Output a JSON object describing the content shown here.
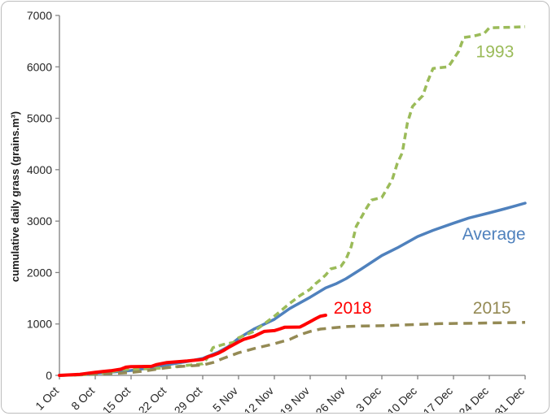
{
  "chart_data": {
    "type": "line",
    "title": "",
    "ylabel": "cumulative daily grass (grains.m³)",
    "xlabel": "",
    "ylim": [
      0,
      7000
    ],
    "ytick_step": 1000,
    "ytick_labels": [
      "0",
      "1000",
      "2000",
      "3000",
      "4000",
      "5000",
      "6000",
      "7000"
    ],
    "xtick_labels": [
      "1 Oct",
      "8 Oct",
      "15 Oct",
      "22 Oct",
      "29 Oct",
      "5 Nov",
      "12 Nov",
      "19 Nov",
      "26 Nov",
      "3 Dec",
      "10 Dec",
      "17 Dec",
      "24 Dec",
      "31 Dec"
    ],
    "xtick_days": [
      0,
      7,
      14,
      21,
      28,
      35,
      42,
      49,
      56,
      63,
      70,
      77,
      84,
      91
    ],
    "x_domain_days": [
      0,
      91
    ],
    "grid": false,
    "legend_position": "inline-labels",
    "axis_color": "#808080",
    "series": [
      {
        "name": "Average",
        "color": "#4F81BD",
        "dash": null,
        "width": 3.5,
        "label": {
          "text": "Average",
          "day": 84.9,
          "value": 2750
        },
        "points": [
          [
            0,
            0
          ],
          [
            4,
            15
          ],
          [
            7,
            40
          ],
          [
            11,
            70
          ],
          [
            14,
            95
          ],
          [
            18,
            150
          ],
          [
            21,
            205
          ],
          [
            25,
            270
          ],
          [
            28,
            330
          ],
          [
            31,
            450
          ],
          [
            33,
            560
          ],
          [
            35,
            720
          ],
          [
            38,
            900
          ],
          [
            42,
            1090
          ],
          [
            45,
            1300
          ],
          [
            49,
            1520
          ],
          [
            52,
            1700
          ],
          [
            54,
            1780
          ],
          [
            56,
            1880
          ],
          [
            59,
            2070
          ],
          [
            63,
            2330
          ],
          [
            66,
            2480
          ],
          [
            70,
            2700
          ],
          [
            73,
            2820
          ],
          [
            77,
            2960
          ],
          [
            80,
            3060
          ],
          [
            84,
            3160
          ],
          [
            87,
            3240
          ],
          [
            91,
            3350
          ]
        ]
      },
      {
        "name": "1993",
        "color": "#9BBB59",
        "dash": "8 5",
        "width": 3.5,
        "label": {
          "text": "1993",
          "day": 85.1,
          "value": 6300
        },
        "points": [
          [
            0,
            0
          ],
          [
            4,
            10
          ],
          [
            7,
            25
          ],
          [
            10,
            60
          ],
          [
            12,
            110
          ],
          [
            14,
            120
          ],
          [
            18,
            130
          ],
          [
            21,
            150
          ],
          [
            24,
            185
          ],
          [
            26,
            205
          ],
          [
            28,
            225
          ],
          [
            29,
            350
          ],
          [
            30,
            540
          ],
          [
            32,
            600
          ],
          [
            34,
            640
          ],
          [
            35,
            730
          ],
          [
            38,
            855
          ],
          [
            40,
            1000
          ],
          [
            42,
            1150
          ],
          [
            45,
            1400
          ],
          [
            47,
            1550
          ],
          [
            49,
            1675
          ],
          [
            50,
            1780
          ],
          [
            51,
            1860
          ],
          [
            52,
            1950
          ],
          [
            53,
            2070
          ],
          [
            55,
            2120
          ],
          [
            56,
            2260
          ],
          [
            57,
            2500
          ],
          [
            58,
            2900
          ],
          [
            60,
            3250
          ],
          [
            61,
            3410
          ],
          [
            63,
            3460
          ],
          [
            65,
            3800
          ],
          [
            66,
            4120
          ],
          [
            67,
            4330
          ],
          [
            68,
            4910
          ],
          [
            69,
            5230
          ],
          [
            70,
            5340
          ],
          [
            71,
            5440
          ],
          [
            72,
            5730
          ],
          [
            73,
            5970
          ],
          [
            75,
            5990
          ],
          [
            76,
            6000
          ],
          [
            78,
            6300
          ],
          [
            79,
            6570
          ],
          [
            81,
            6600
          ],
          [
            83,
            6650
          ],
          [
            84,
            6760
          ],
          [
            88,
            6770
          ],
          [
            91,
            6780
          ]
        ]
      },
      {
        "name": "2015",
        "color": "#948A54",
        "dash": "11 7",
        "width": 3.5,
        "label": {
          "text": "2015",
          "day": 84.5,
          "value": 1310
        },
        "points": [
          [
            0,
            0
          ],
          [
            4,
            10
          ],
          [
            7,
            25
          ],
          [
            11,
            40
          ],
          [
            14,
            55
          ],
          [
            17,
            90
          ],
          [
            21,
            150
          ],
          [
            24,
            175
          ],
          [
            28,
            200
          ],
          [
            30,
            250
          ],
          [
            32,
            330
          ],
          [
            35,
            440
          ],
          [
            38,
            520
          ],
          [
            42,
            615
          ],
          [
            45,
            700
          ],
          [
            47,
            790
          ],
          [
            49,
            855
          ],
          [
            51,
            900
          ],
          [
            53,
            920
          ],
          [
            56,
            950
          ],
          [
            59,
            960
          ],
          [
            63,
            965
          ],
          [
            66,
            975
          ],
          [
            70,
            990
          ],
          [
            74,
            1005
          ],
          [
            77,
            1010
          ],
          [
            81,
            1015
          ],
          [
            84,
            1020
          ],
          [
            88,
            1025
          ],
          [
            91,
            1030
          ]
        ]
      },
      {
        "name": "2018",
        "color": "#FF0000",
        "dash": null,
        "width": 4,
        "label": {
          "text": "2018",
          "day": 57.3,
          "value": 1310
        },
        "points": [
          [
            0,
            0
          ],
          [
            2,
            10
          ],
          [
            4,
            20
          ],
          [
            7,
            60
          ],
          [
            9,
            80
          ],
          [
            10,
            90
          ],
          [
            12,
            120
          ],
          [
            13,
            160
          ],
          [
            14,
            170
          ],
          [
            16,
            172
          ],
          [
            18,
            175
          ],
          [
            19,
            210
          ],
          [
            21,
            250
          ],
          [
            23,
            265
          ],
          [
            25,
            280
          ],
          [
            28,
            310
          ],
          [
            29,
            360
          ],
          [
            30,
            390
          ],
          [
            31,
            430
          ],
          [
            32,
            480
          ],
          [
            33,
            540
          ],
          [
            35,
            650
          ],
          [
            36,
            700
          ],
          [
            38,
            760
          ],
          [
            40,
            855
          ],
          [
            42,
            870
          ],
          [
            43,
            900
          ],
          [
            44,
            935
          ],
          [
            46,
            938
          ],
          [
            47,
            940
          ],
          [
            48,
            990
          ],
          [
            49,
            1045
          ],
          [
            50,
            1100
          ],
          [
            51,
            1150
          ],
          [
            52,
            1170
          ]
        ]
      }
    ]
  }
}
